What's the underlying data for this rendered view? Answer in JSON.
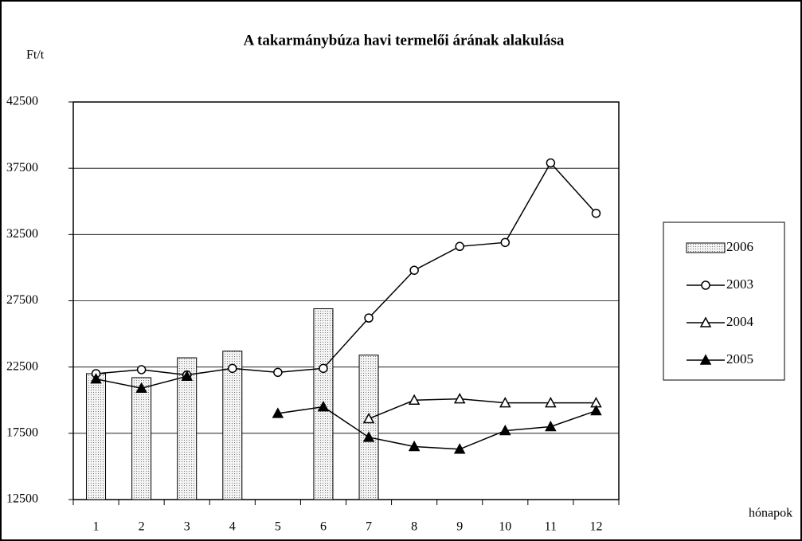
{
  "chart_data": {
    "type": "combo",
    "title": "A takarmánybúza havi termelői árának alakulása",
    "ylabel": "Ft/t",
    "xlabel": "hónapok",
    "categories": [
      "1",
      "2",
      "3",
      "4",
      "5",
      "6",
      "7",
      "8",
      "9",
      "10",
      "11",
      "12"
    ],
    "ylim": [
      12500,
      42500
    ],
    "yticks": [
      12500,
      17500,
      22500,
      27500,
      32500,
      37500,
      42500
    ],
    "grid": true,
    "legend": "right",
    "series": [
      {
        "name": "2006",
        "type": "bar",
        "color": "#e0e0e0",
        "values": [
          22000,
          21700,
          23200,
          23700,
          null,
          26900,
          23400,
          null,
          null,
          null,
          null,
          null
        ]
      },
      {
        "name": "2003",
        "type": "line",
        "marker": "circle-open",
        "color": "#000000",
        "values": [
          22000,
          22300,
          21900,
          22400,
          22100,
          22400,
          26200,
          29800,
          31600,
          31900,
          37900,
          34100
        ]
      },
      {
        "name": "2004",
        "type": "line",
        "marker": "triangle-open",
        "color": "#000000",
        "values": [
          null,
          null,
          null,
          null,
          null,
          null,
          18600,
          20000,
          20100,
          19800,
          19800,
          19800
        ]
      },
      {
        "name": "2005",
        "type": "line",
        "marker": "triangle-filled",
        "color": "#000000",
        "values": [
          21600,
          20900,
          21800,
          null,
          19000,
          19500,
          17200,
          16500,
          16300,
          17700,
          18000,
          19200
        ]
      }
    ]
  }
}
